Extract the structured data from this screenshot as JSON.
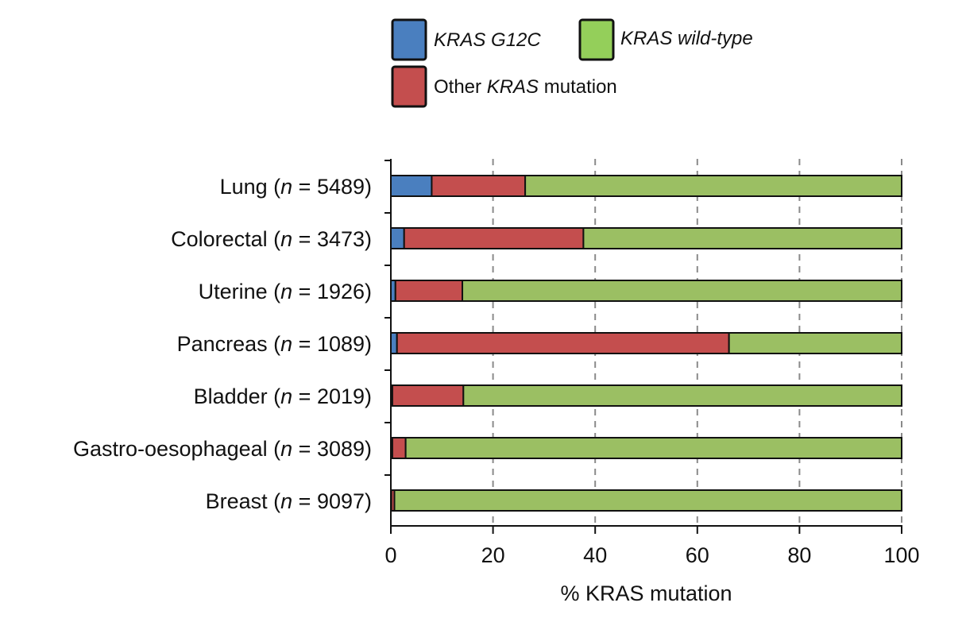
{
  "chart_data": {
    "type": "bar",
    "orientation": "horizontal",
    "stacked": true,
    "xlabel": "% KRAS mutation",
    "xlim": [
      0,
      100
    ],
    "xticks": [
      0,
      20,
      40,
      60,
      80,
      100
    ],
    "grid": "vertical dashed",
    "legend_position": "top",
    "categories": [
      {
        "name": "Lung",
        "n": "5489"
      },
      {
        "name": "Colorectal",
        "n": "3473"
      },
      {
        "name": "Uterine",
        "n": "1926"
      },
      {
        "name": "Pancreas",
        "n": "1089"
      },
      {
        "name": "Bladder",
        "n": "2019"
      },
      {
        "name": "Gastro-oesophageal",
        "n": "3089"
      },
      {
        "name": "Breast",
        "n": "9097"
      }
    ],
    "series": [
      {
        "name": "KRAS G12C",
        "color": "#4a7fbf",
        "values": [
          8.0,
          2.6,
          0.9,
          1.2,
          0.3,
          0.3,
          0.1
        ]
      },
      {
        "name": "Other KRAS mutation",
        "color": "#c44e4e",
        "values": [
          18.3,
          35.1,
          13.1,
          65.0,
          13.9,
          2.6,
          0.6
        ]
      },
      {
        "name": "KRAS wild-type",
        "color": "#9bbf63",
        "values": [
          73.7,
          62.3,
          86.0,
          33.8,
          85.8,
          97.1,
          99.3
        ]
      }
    ],
    "legend": [
      {
        "key": "g12c",
        "parts": [
          {
            "t": "KRAS G12C",
            "i": true
          }
        ],
        "color": "#4a7fbf"
      },
      {
        "key": "wt",
        "parts": [
          {
            "t": "KRAS wild-type",
            "i": true
          }
        ],
        "color": "#94cf5a"
      },
      {
        "key": "other",
        "parts": [
          {
            "t": "Other ",
            "i": false
          },
          {
            "t": "KRAS",
            "i": true
          },
          {
            "t": " mutation",
            "i": false
          }
        ],
        "color": "#c44e4e"
      }
    ]
  }
}
